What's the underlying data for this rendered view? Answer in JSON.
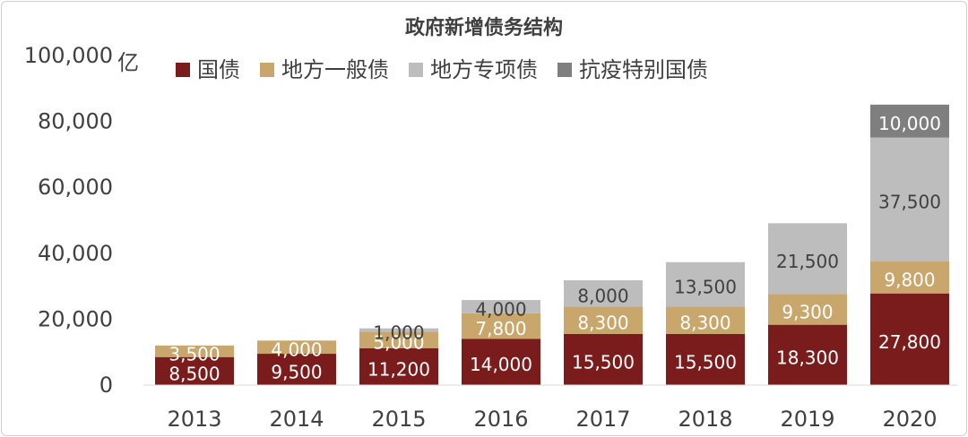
{
  "chart_data": {
    "type": "bar",
    "stacked": true,
    "title": "政府新增债务结构",
    "unit_label": "亿",
    "categories": [
      "2013",
      "2014",
      "2015",
      "2016",
      "2017",
      "2018",
      "2019",
      "2020"
    ],
    "series": [
      {
        "name": "国债",
        "color": "#7b1c1c",
        "label_color": "#ffffff",
        "values": [
          8500,
          9500,
          11200,
          14000,
          15500,
          15500,
          18300,
          27800
        ]
      },
      {
        "name": "地方一般债",
        "color": "#c9a66b",
        "label_color": "#ffffff",
        "values": [
          3500,
          4000,
          5000,
          7800,
          8300,
          8300,
          9300,
          9800
        ]
      },
      {
        "name": "地方专项债",
        "color": "#bdbdbd",
        "label_color": "#404040",
        "values": [
          0,
          0,
          1000,
          4000,
          8000,
          13500,
          21500,
          37500
        ]
      },
      {
        "name": "抗疫特别国债",
        "color": "#7f7f7f",
        "label_color": "#ffffff",
        "values": [
          0,
          0,
          0,
          0,
          0,
          0,
          0,
          10000
        ]
      }
    ],
    "data_labels": [
      [
        "8,500",
        "9,500",
        "11,200",
        "14,000",
        "15,500",
        "15,500",
        "18,300",
        "27,800"
      ],
      [
        "3,500",
        "4,000",
        "5,000",
        "7,800",
        "8,300",
        "8,300",
        "9,300",
        "9,800"
      ],
      [
        "",
        "",
        "1,000",
        "4,000",
        "8,000",
        "13,500",
        "21,500",
        "37,500"
      ],
      [
        "",
        "",
        "",
        "",
        "",
        "",
        "",
        "10,000"
      ]
    ],
    "ylim": [
      0,
      100000
    ],
    "yticks": [
      0,
      20000,
      40000,
      60000,
      80000,
      100000
    ],
    "ytick_labels": [
      "0",
      "20,000",
      "40,000",
      "60,000",
      "80,000",
      "100,000"
    ],
    "grid": false,
    "legend_position": "top"
  }
}
